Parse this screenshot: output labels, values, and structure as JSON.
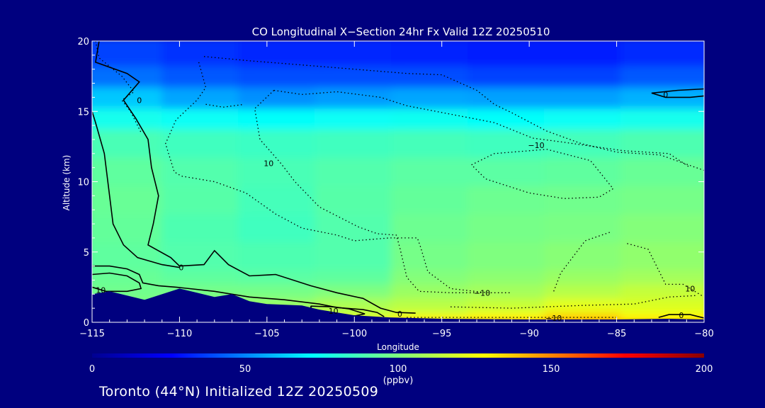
{
  "chart_data": {
    "type": "heatmap",
    "title": "CO Longitudinal X−Section 24hr  Fx Valid 12Z 20250510",
    "xlabel": "Longitude",
    "ylabel": "Altitude (km)",
    "xlim": [
      -115,
      -80
    ],
    "ylim": [
      0,
      20
    ],
    "x_ticks": [
      -115,
      -110,
      -105,
      -100,
      -95,
      -90,
      -85,
      -80
    ],
    "x_tick_labels": [
      "−115",
      "−110",
      "−105",
      "−100",
      "−95",
      "−90",
      "−85",
      "−80"
    ],
    "y_ticks": [
      0,
      5,
      10,
      15,
      20
    ],
    "y_tick_labels": [
      "0",
      "5",
      "10",
      "15",
      "20"
    ],
    "colorbar": {
      "min": 0,
      "max": 200,
      "ticks": [
        0,
        50,
        100,
        150,
        200
      ],
      "tick_labels": [
        "0",
        "50",
        "100",
        "150",
        "200"
      ],
      "unit": "(ppbv)"
    },
    "band_altitudes_km": [
      0,
      0.5,
      1,
      2,
      3,
      4,
      6,
      8,
      10,
      12,
      14,
      15.5,
      17,
      18.5,
      20
    ],
    "band_longitudes": [
      -115,
      -110,
      -105,
      -100,
      -95,
      -90,
      -85,
      -80
    ],
    "co_ppbv_bands": [
      [
        112,
        118,
        122,
        128,
        135,
        140,
        145,
        138
      ],
      [
        105,
        110,
        113,
        118,
        125,
        128,
        135,
        128
      ],
      [
        100,
        104,
        106,
        110,
        113,
        116,
        122,
        120
      ],
      [
        97,
        98,
        98,
        100,
        106,
        108,
        112,
        115
      ],
      [
        95,
        93,
        92,
        93,
        101,
        103,
        106,
        108
      ],
      [
        93,
        90,
        89,
        90,
        98,
        100,
        102,
        104
      ],
      [
        94,
        89,
        86,
        90,
        96,
        98,
        99,
        101
      ],
      [
        95,
        91,
        87,
        91,
        94,
        96,
        97,
        98
      ],
      [
        93,
        90,
        88,
        90,
        92,
        92,
        93,
        95
      ],
      [
        88,
        86,
        85,
        86,
        87,
        86,
        87,
        89
      ],
      [
        76,
        74,
        73,
        74,
        75,
        73,
        74,
        76
      ],
      [
        62,
        56,
        52,
        54,
        56,
        55,
        55,
        58
      ],
      [
        46,
        42,
        40,
        40,
        40,
        38,
        38,
        42
      ],
      [
        38,
        35,
        33,
        33,
        32,
        31,
        31,
        34
      ]
    ],
    "terrain_km": [
      [
        -115,
        2.0
      ],
      [
        -114,
        2.2
      ],
      [
        -112,
        1.6
      ],
      [
        -110,
        2.4
      ],
      [
        -109,
        2.1
      ],
      [
        -108,
        1.8
      ],
      [
        -107,
        2.0
      ],
      [
        -106,
        1.5
      ],
      [
        -105,
        1.3
      ],
      [
        -103,
        1.2
      ],
      [
        -102,
        0.9
      ],
      [
        -100,
        0.5
      ],
      [
        -98,
        0.35
      ],
      [
        -95,
        0.25
      ],
      [
        -90,
        0.2
      ],
      [
        -85,
        0.2
      ],
      [
        -82,
        0.25
      ],
      [
        -80,
        0.2
      ]
    ],
    "contour_labels": [
      {
        "text": "0",
        "lon": -112.3,
        "alt": 15.8
      },
      {
        "text": "0",
        "lon": -109.9,
        "alt": 3.9
      },
      {
        "text": "10",
        "lon": -114.5,
        "alt": 2.3
      },
      {
        "text": "10",
        "lon": -104.9,
        "alt": 11.3
      },
      {
        "text": "10",
        "lon": -101.2,
        "alt": 0.8
      },
      {
        "text": "0",
        "lon": -97.4,
        "alt": 0.6
      },
      {
        "text": "−10",
        "lon": -92.7,
        "alt": 2.1
      },
      {
        "text": "−10",
        "lon": -89.6,
        "alt": 12.6
      },
      {
        "text": "−10",
        "lon": -88.6,
        "alt": 0.3
      },
      {
        "text": "0",
        "lon": -82.2,
        "alt": 16.2
      },
      {
        "text": "10",
        "lon": -80.8,
        "alt": 2.4
      },
      {
        "text": "0",
        "lon": -81.3,
        "alt": 0.5
      }
    ]
  },
  "footer": "Toronto (44°N) Initialized 12Z 20250509"
}
